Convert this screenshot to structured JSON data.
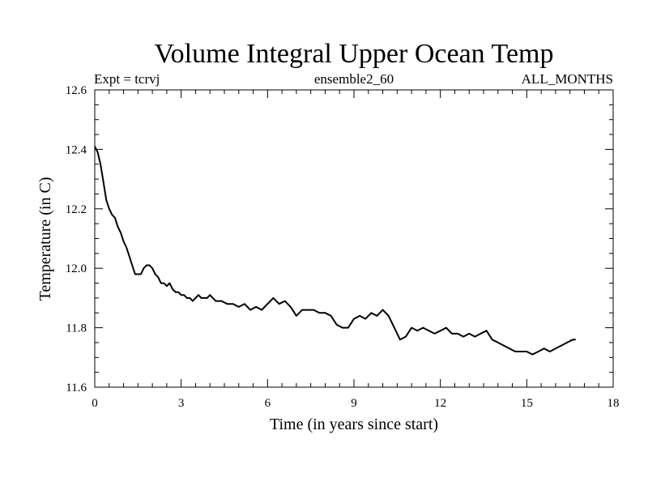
{
  "chart_data": {
    "type": "line",
    "title": "Volume Integral Upper Ocean Temp",
    "subtitle_left": "Expt = tcrvj",
    "subtitle_center": "ensemble2_60",
    "subtitle_right": "ALL_MONTHS",
    "xlabel": "Time (in years since start)",
    "ylabel": "Temperature (in C)",
    "xlim": [
      0,
      18
    ],
    "ylim": [
      11.6,
      12.6
    ],
    "xticks": [
      0,
      3,
      6,
      9,
      12,
      15,
      18
    ],
    "xtick_labels": [
      "0",
      "3",
      "6",
      "9",
      "12",
      "15",
      "18"
    ],
    "yticks": [
      11.6,
      11.8,
      12.0,
      12.2,
      12.4,
      12.6
    ],
    "ytick_labels": [
      "11.6",
      "11.8",
      "12.0",
      "12.2",
      "12.4",
      "12.6"
    ],
    "x_minor_step": 0.5,
    "y_minor_step": 0.05,
    "grid": false,
    "series": [
      {
        "name": "Volume Integral Upper Ocean Temp",
        "x": [
          0.0,
          0.1,
          0.2,
          0.3,
          0.4,
          0.5,
          0.6,
          0.7,
          0.8,
          0.9,
          1.0,
          1.1,
          1.2,
          1.3,
          1.4,
          1.5,
          1.6,
          1.7,
          1.8,
          1.9,
          2.0,
          2.1,
          2.2,
          2.3,
          2.4,
          2.5,
          2.6,
          2.7,
          2.8,
          2.9,
          3.0,
          3.1,
          3.2,
          3.3,
          3.4,
          3.5,
          3.6,
          3.7,
          3.8,
          3.9,
          4.0,
          4.2,
          4.4,
          4.6,
          4.8,
          5.0,
          5.2,
          5.4,
          5.6,
          5.8,
          6.0,
          6.2,
          6.4,
          6.6,
          6.8,
          7.0,
          7.2,
          7.4,
          7.6,
          7.8,
          8.0,
          8.2,
          8.4,
          8.6,
          8.8,
          9.0,
          9.2,
          9.4,
          9.6,
          9.8,
          10.0,
          10.2,
          10.4,
          10.6,
          10.8,
          11.0,
          11.2,
          11.4,
          11.6,
          11.8,
          12.0,
          12.2,
          12.4,
          12.6,
          12.8,
          13.0,
          13.2,
          13.4,
          13.6,
          13.8,
          14.0,
          14.2,
          14.4,
          14.6,
          14.8,
          15.0,
          15.2,
          15.4,
          15.6,
          15.8,
          16.0,
          16.2,
          16.4,
          16.6,
          16.7
        ],
        "values": [
          12.41,
          12.39,
          12.35,
          12.29,
          12.23,
          12.2,
          12.18,
          12.17,
          12.14,
          12.12,
          12.09,
          12.07,
          12.04,
          12.01,
          11.98,
          11.98,
          11.98,
          12.0,
          12.01,
          12.01,
          12.0,
          11.98,
          11.97,
          11.95,
          11.95,
          11.94,
          11.95,
          11.93,
          11.92,
          11.92,
          11.91,
          11.91,
          11.9,
          11.9,
          11.89,
          11.9,
          11.91,
          11.9,
          11.9,
          11.9,
          11.91,
          11.89,
          11.89,
          11.88,
          11.88,
          11.87,
          11.88,
          11.86,
          11.87,
          11.86,
          11.88,
          11.9,
          11.88,
          11.89,
          11.87,
          11.84,
          11.86,
          11.86,
          11.86,
          11.85,
          11.85,
          11.84,
          11.81,
          11.8,
          11.8,
          11.83,
          11.84,
          11.83,
          11.85,
          11.84,
          11.86,
          11.84,
          11.8,
          11.76,
          11.77,
          11.8,
          11.79,
          11.8,
          11.79,
          11.78,
          11.79,
          11.8,
          11.78,
          11.78,
          11.77,
          11.78,
          11.77,
          11.78,
          11.79,
          11.76,
          11.75,
          11.74,
          11.73,
          11.72,
          11.72,
          11.72,
          11.71,
          11.72,
          11.73,
          11.72,
          11.73,
          11.74,
          11.75,
          11.76,
          11.76
        ]
      }
    ]
  }
}
